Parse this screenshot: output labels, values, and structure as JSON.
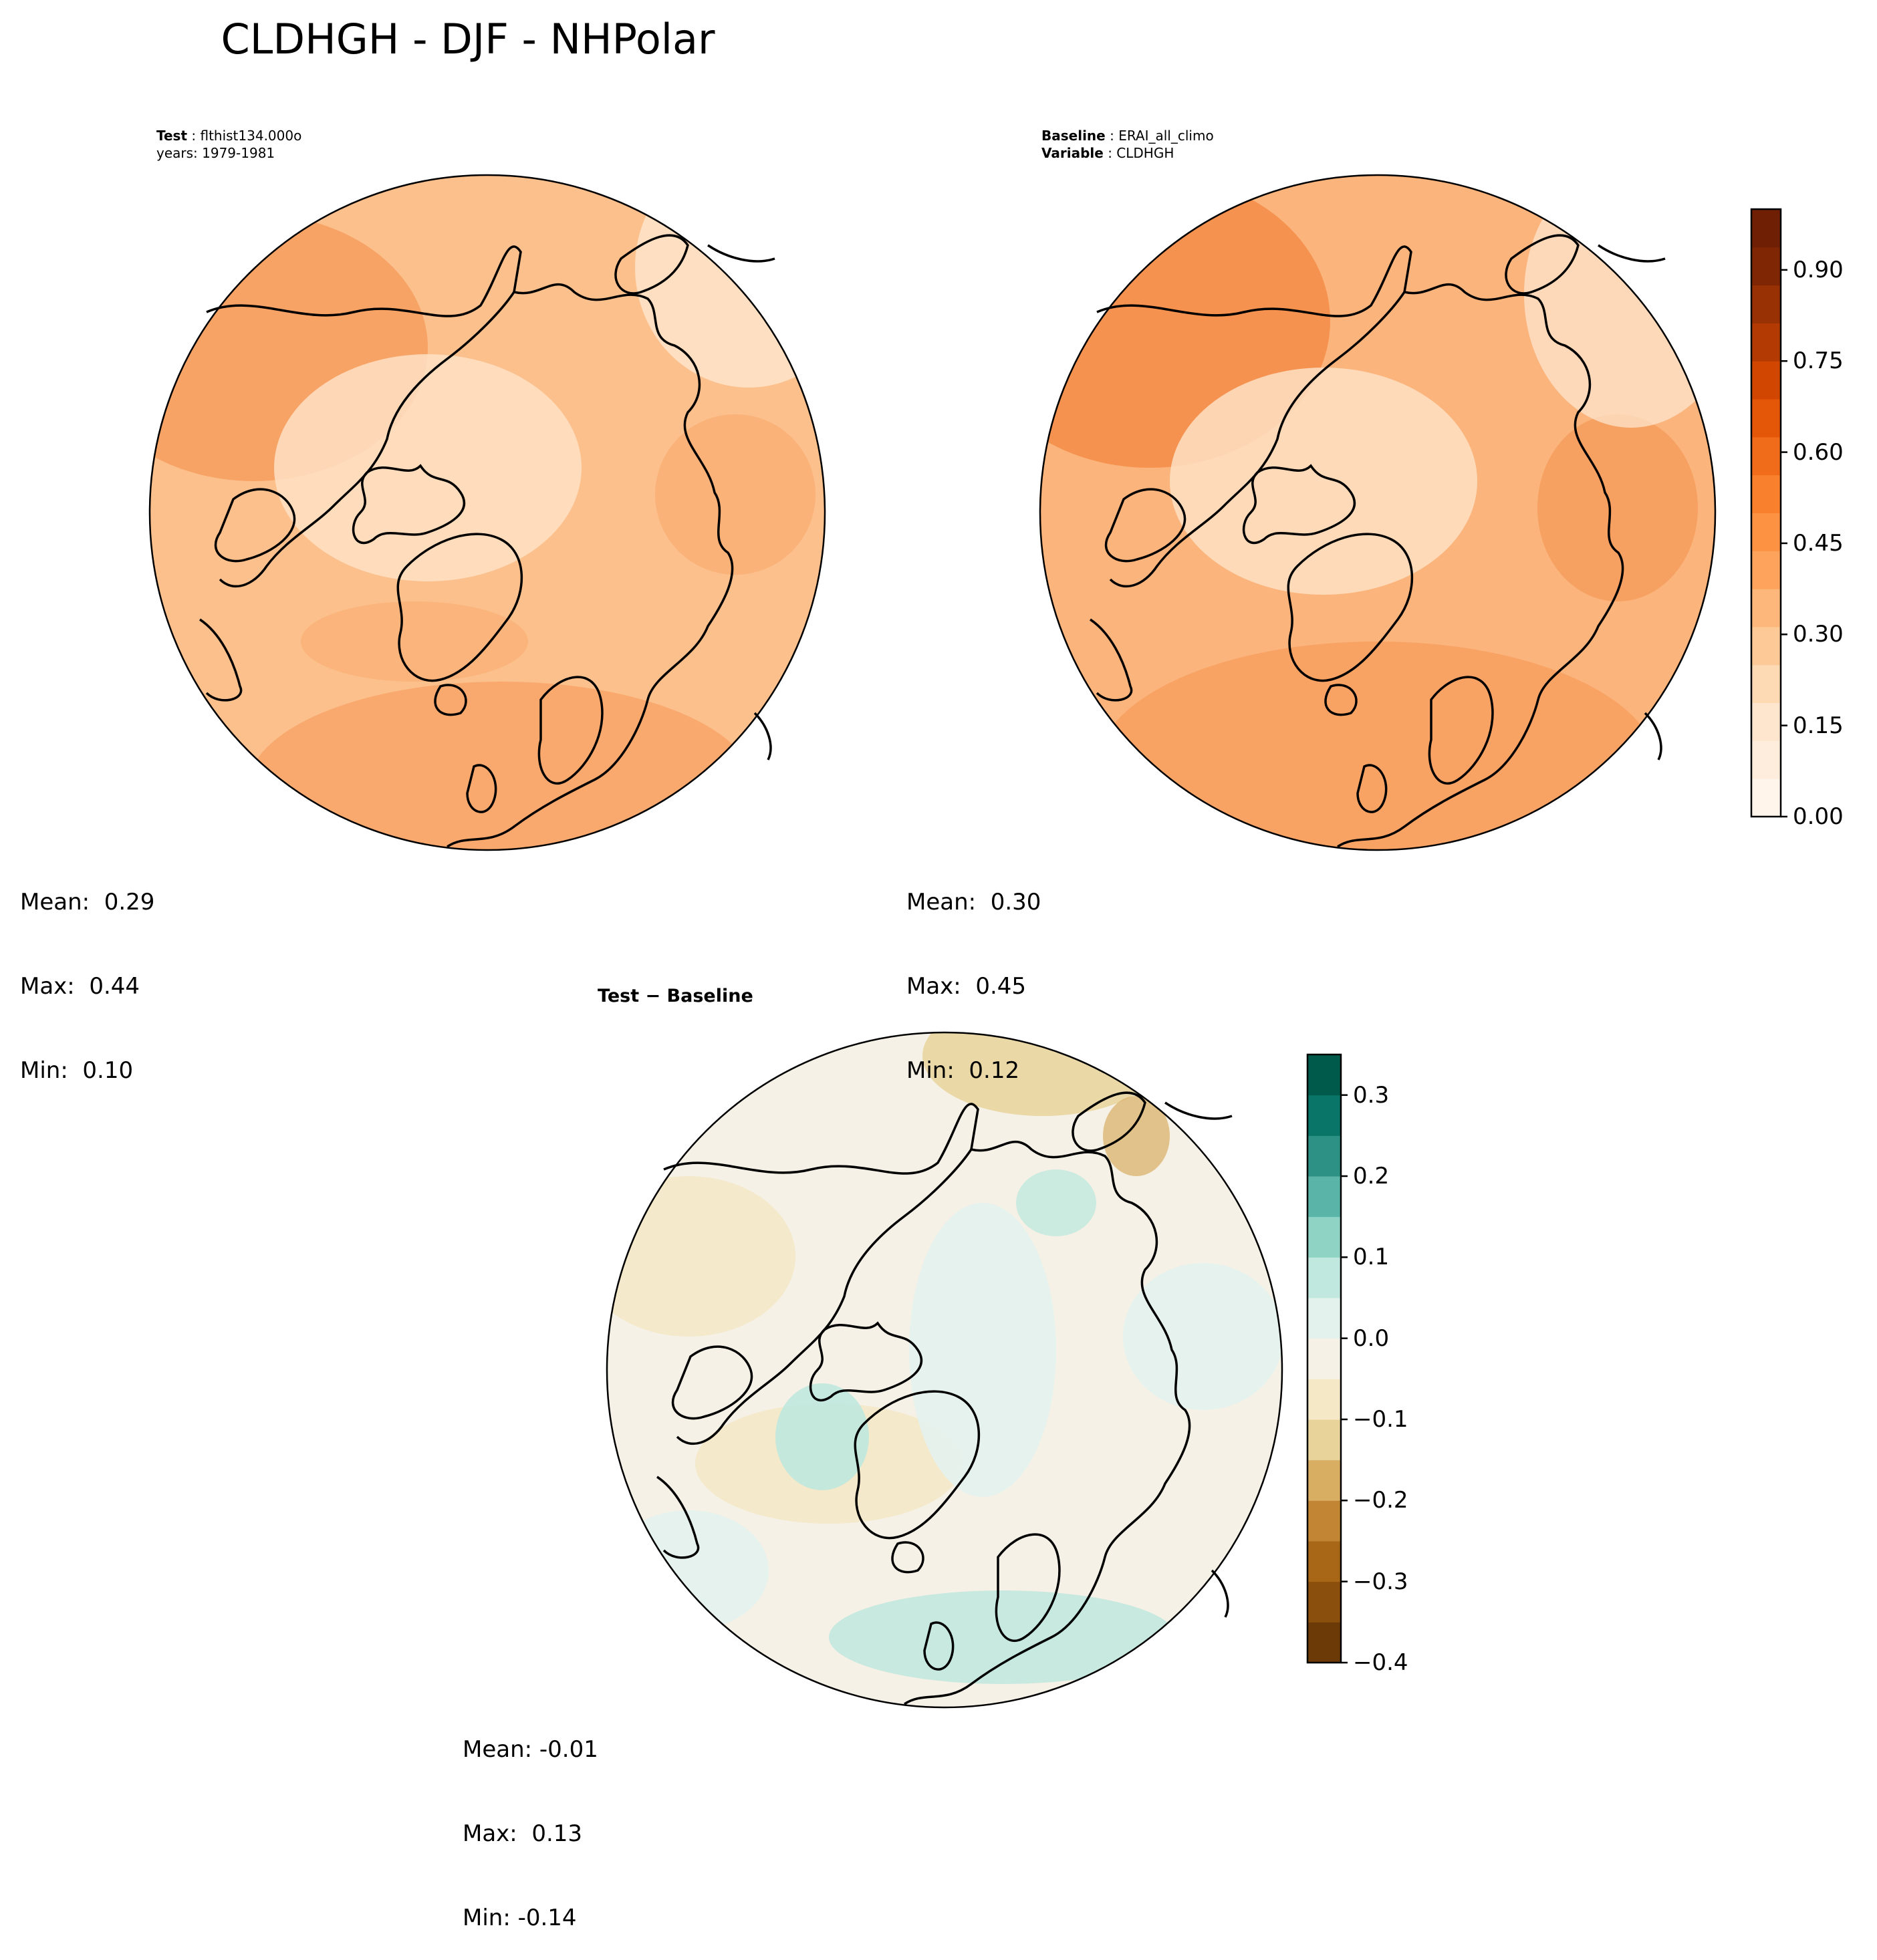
{
  "title": "CLDHGH - DJF - NHPolar",
  "test_panel": {
    "label_key": "Test",
    "label_value": "flthist134.000o",
    "years": "years: 1979-1981",
    "stats": {
      "mean": "Mean:  0.29",
      "max": "Max:  0.44",
      "min": "Min:  0.10"
    }
  },
  "baseline_panel": {
    "label_key": "Baseline",
    "label_value": "ERAI_all_climo",
    "variable_key": "Variable",
    "variable_value": "CLDHGH",
    "stats": {
      "mean": "Mean:  0.30",
      "max": "Max:  0.45",
      "min": "Min:  0.12"
    }
  },
  "diff_panel": {
    "label": "Test − Baseline",
    "stats": {
      "mean": "Mean: -0.01",
      "max": "Max:  0.13",
      "min": "Min: -0.14"
    }
  },
  "colorbar_main": {
    "range": [
      0.0,
      1.0
    ],
    "ticks": [
      "0.00",
      "0.15",
      "0.30",
      "0.45",
      "0.60",
      "0.75",
      "0.90"
    ],
    "tick_values": [
      0.0,
      0.15,
      0.3,
      0.45,
      0.6,
      0.75,
      0.9
    ],
    "colors": [
      "#fff5eb",
      "#feeddc",
      "#fee6ce",
      "#fdd9b4",
      "#fdc997",
      "#fdb77a",
      "#fda35c",
      "#fd9243",
      "#f9802c",
      "#f06b1a",
      "#e45709",
      "#d14702",
      "#b33a02",
      "#983103",
      "#7f2704",
      "#6f2004"
    ]
  },
  "colorbar_diff": {
    "range": [
      -0.4,
      0.35
    ],
    "ticks": [
      "−0.4",
      "−0.3",
      "−0.2",
      "−0.1",
      "0.0",
      "0.1",
      "0.2",
      "0.3"
    ],
    "tick_values": [
      -0.4,
      -0.3,
      -0.2,
      -0.1,
      0.0,
      0.1,
      0.2,
      0.3
    ],
    "colors": [
      "#6b3a06",
      "#8a4f0c",
      "#a86617",
      "#c28533",
      "#d8ae62",
      "#e8d39b",
      "#f4e8c6",
      "#f5f1e6",
      "#e4f2ee",
      "#c0e8de",
      "#8fd3c4",
      "#5bb4a8",
      "#2e9185",
      "#087568",
      "#005a4b"
    ]
  },
  "map_fill": {
    "test": "#fcc08c",
    "baseline": "#fbb47c",
    "diff": "#f5f1e6"
  }
}
